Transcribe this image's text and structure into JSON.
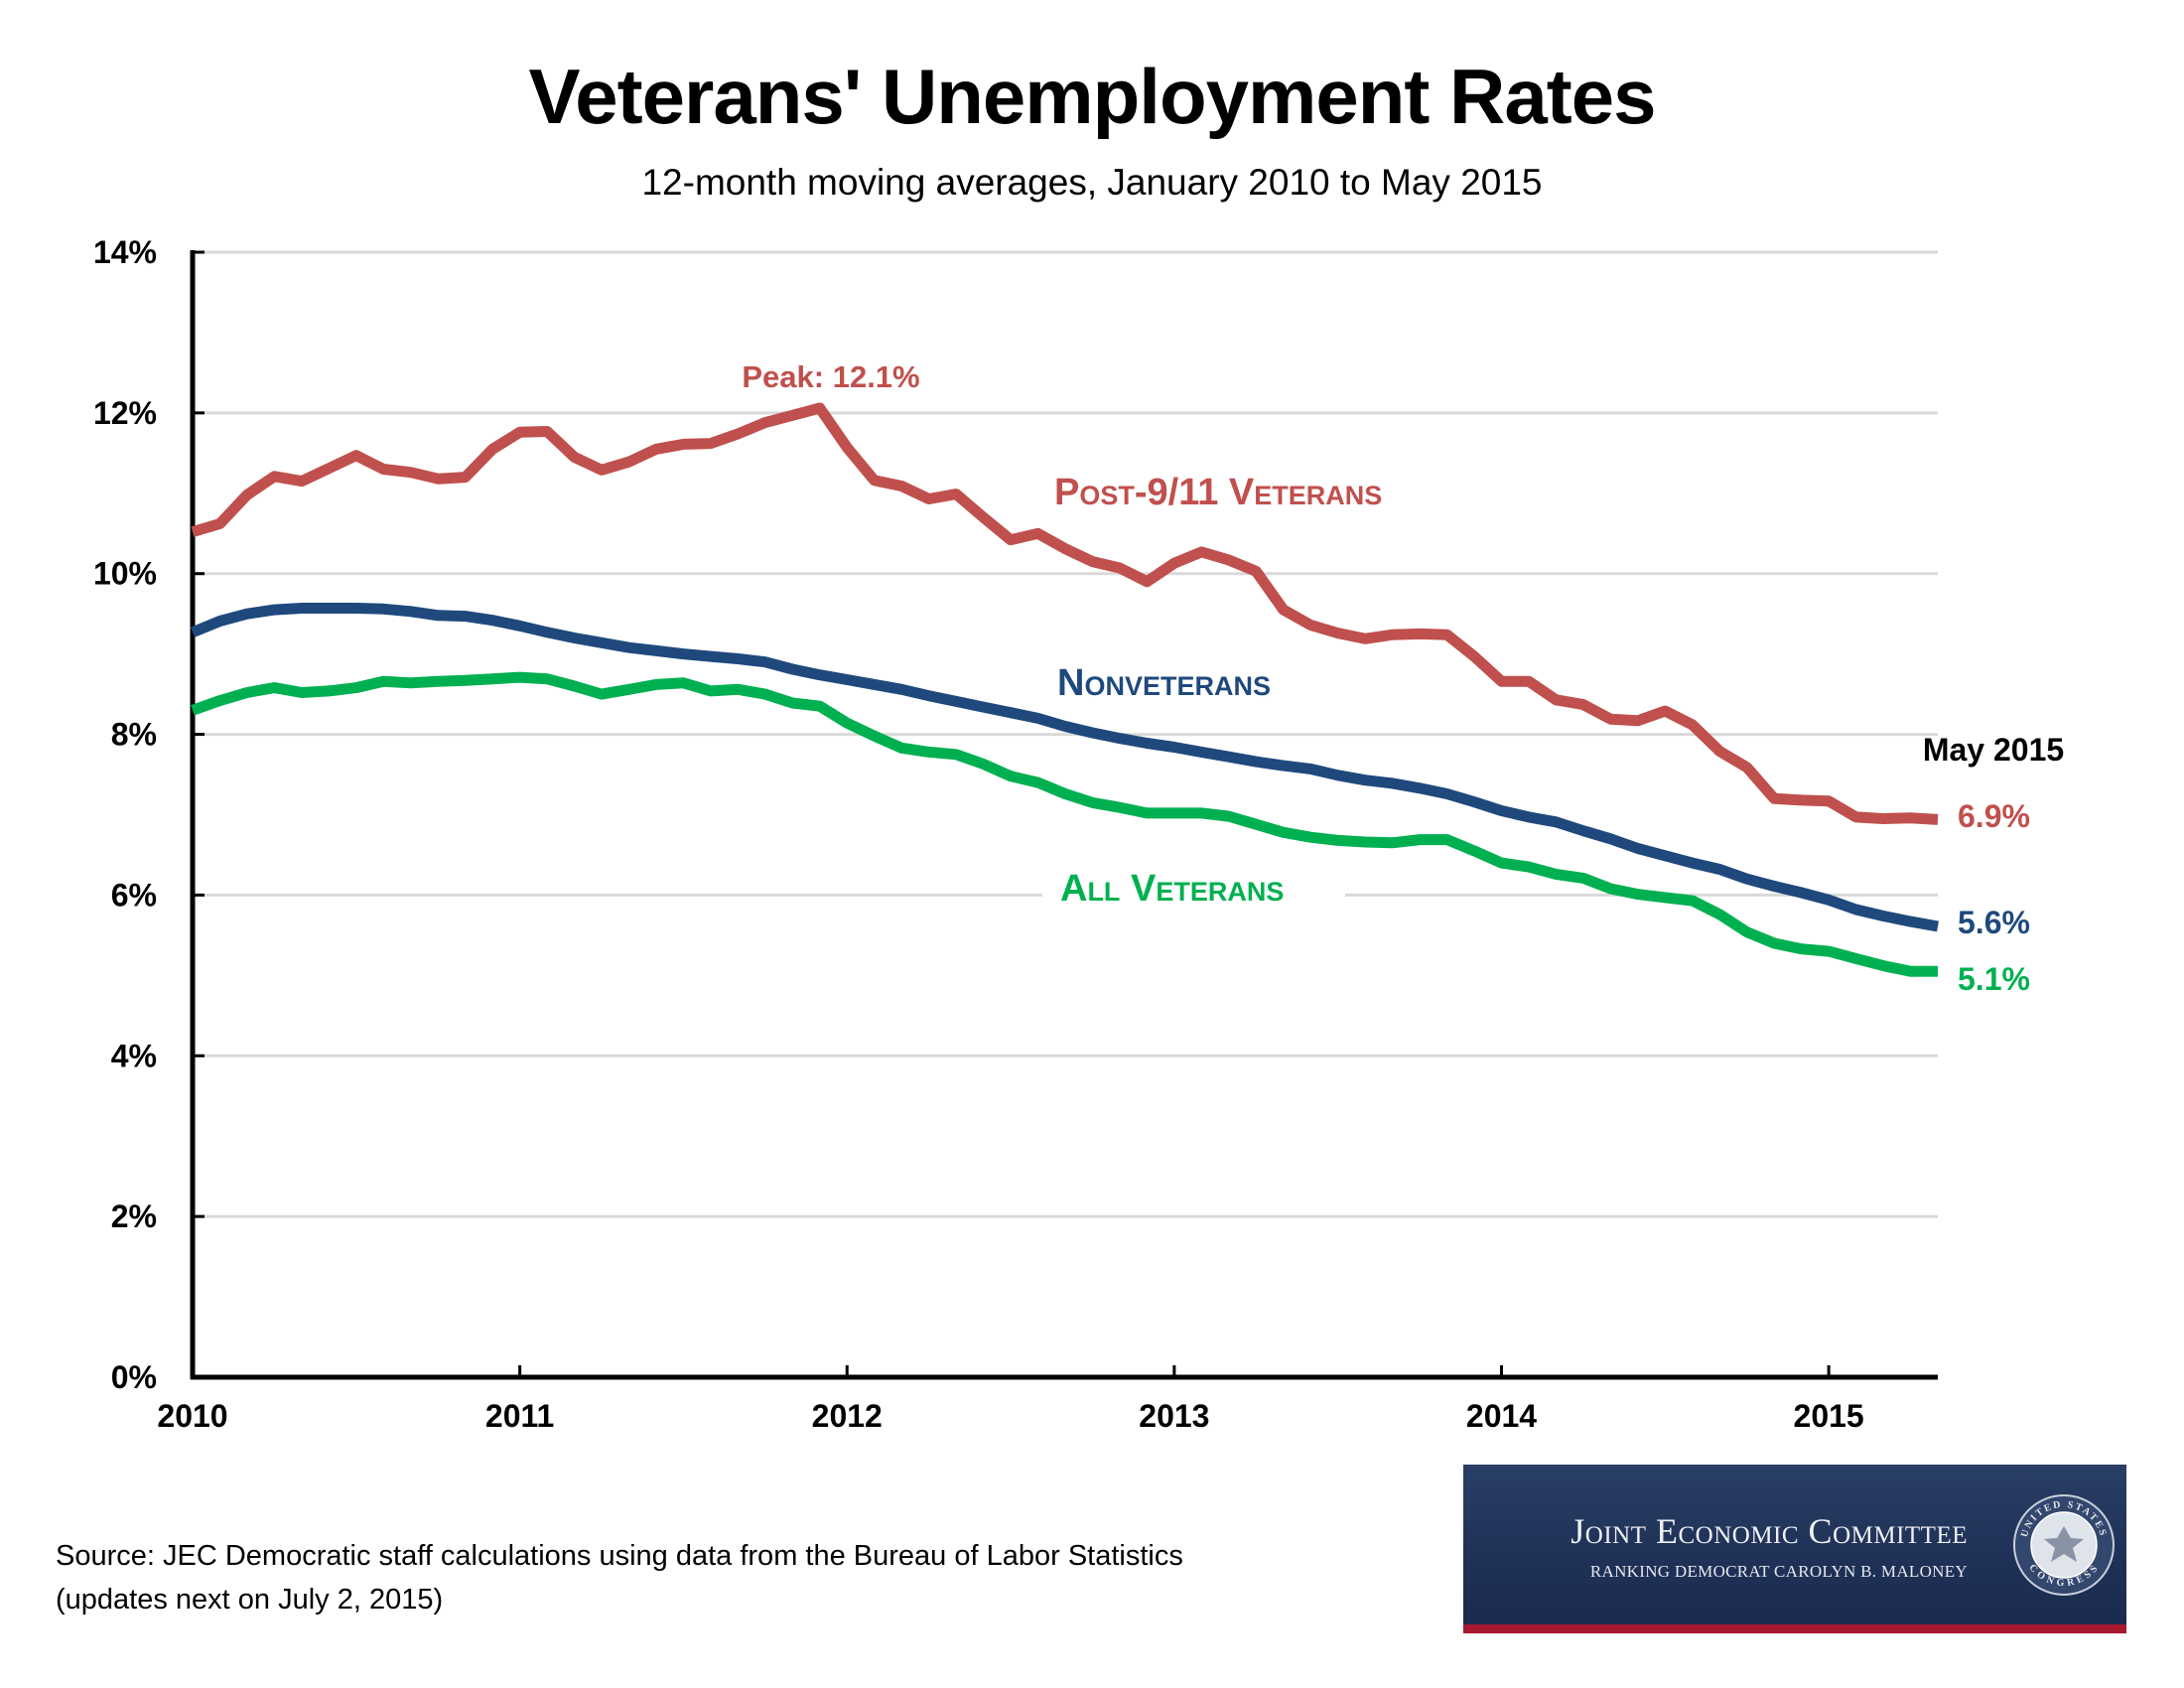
{
  "header": {
    "title": "Veterans' Unemployment Rates",
    "subtitle": "12-month moving averages, January 2010 to May 2015"
  },
  "footer": {
    "source_line1": "Source: JEC Democratic staff calculations using data from the Bureau of Labor Statistics",
    "source_line2": "(updates next on July 2, 2015)"
  },
  "logo": {
    "name": "Joint Economic Committee",
    "subtitle": "RANKING DEMOCRAT CAROLYN B. MALONEY",
    "seal_top_text": "UNITED STATES",
    "seal_bottom_text": "CONGRESS",
    "seal_icon": "congress-seal-icon",
    "background_color": "#1f3157",
    "stripe_color": "#a6192e"
  },
  "chart_data": {
    "type": "line",
    "title": "Veterans' Unemployment Rates",
    "subtitle": "12-month moving averages, January 2010 to May 2015",
    "xlabel": "",
    "ylabel": "",
    "x_start": "January 2010",
    "x_end": "May 2015",
    "x_unit": "month",
    "x_tick_labels": [
      "2010",
      "2011",
      "2012",
      "2013",
      "2014",
      "2015"
    ],
    "y_tick_labels": [
      "0%",
      "2%",
      "4%",
      "6%",
      "8%",
      "10%",
      "12%",
      "14%"
    ],
    "y_ticks": [
      0,
      2,
      4,
      6,
      8,
      10,
      12,
      14
    ],
    "ylim": [
      0,
      14
    ],
    "xlim_months": [
      0,
      64
    ],
    "grid": "horizontal",
    "legend": "inline labels",
    "series": [
      {
        "name": "Post-9/11 Veterans",
        "color": "#c0504d",
        "end_label": "6.9%",
        "values": [
          10.52,
          10.62,
          10.98,
          11.21,
          11.15,
          11.31,
          11.47,
          11.3,
          11.26,
          11.18,
          11.2,
          11.55,
          11.76,
          11.77,
          11.45,
          11.29,
          11.39,
          11.55,
          11.61,
          11.62,
          11.74,
          11.88,
          11.97,
          12.06,
          11.57,
          11.16,
          11.09,
          10.93,
          10.99,
          10.7,
          10.42,
          10.5,
          10.31,
          10.15,
          10.07,
          9.9,
          10.13,
          10.27,
          10.17,
          10.03,
          9.55,
          9.36,
          9.26,
          9.19,
          9.24,
          9.25,
          9.24,
          8.97,
          8.66,
          8.66,
          8.43,
          8.37,
          8.19,
          8.17,
          8.29,
          8.12,
          7.79,
          7.59,
          7.2,
          7.18,
          7.17,
          6.97,
          6.95,
          6.96,
          6.94
        ]
      },
      {
        "name": "Nonveterans",
        "color": "#1f497d",
        "end_label": "5.6%",
        "values": [
          9.27,
          9.41,
          9.5,
          9.55,
          9.57,
          9.57,
          9.57,
          9.56,
          9.53,
          9.48,
          9.47,
          9.42,
          9.35,
          9.27,
          9.2,
          9.14,
          9.08,
          9.04,
          9.0,
          8.97,
          8.94,
          8.9,
          8.81,
          8.74,
          8.68,
          8.62,
          8.56,
          8.48,
          8.41,
          8.34,
          8.27,
          8.2,
          8.1,
          8.02,
          7.95,
          7.89,
          7.84,
          7.78,
          7.72,
          7.66,
          7.61,
          7.57,
          7.49,
          7.43,
          7.39,
          7.33,
          7.26,
          7.16,
          7.05,
          6.97,
          6.91,
          6.8,
          6.7,
          6.58,
          6.49,
          6.4,
          6.32,
          6.2,
          6.11,
          6.03,
          5.94,
          5.82,
          5.74,
          5.67,
          5.61
        ]
      },
      {
        "name": "All Veterans",
        "color": "#00b050",
        "end_label": "5.1%",
        "values": [
          8.3,
          8.42,
          8.52,
          8.58,
          8.52,
          8.54,
          8.58,
          8.66,
          8.64,
          8.66,
          8.67,
          8.69,
          8.71,
          8.69,
          8.6,
          8.5,
          8.56,
          8.62,
          8.64,
          8.54,
          8.56,
          8.5,
          8.39,
          8.35,
          8.14,
          7.98,
          7.83,
          7.78,
          7.75,
          7.63,
          7.48,
          7.4,
          7.26,
          7.15,
          7.09,
          7.02,
          7.02,
          7.02,
          6.98,
          6.88,
          6.78,
          6.72,
          6.68,
          6.66,
          6.65,
          6.69,
          6.69,
          6.55,
          6.4,
          6.35,
          6.26,
          6.21,
          6.08,
          6.01,
          5.97,
          5.93,
          5.76,
          5.54,
          5.4,
          5.33,
          5.3,
          5.21,
          5.12,
          5.05,
          5.05
        ]
      }
    ],
    "annotations": [
      {
        "text": "Peak: 12.1%",
        "series": "Post-9/11 Veterans",
        "color": "#c0504d"
      },
      {
        "text": "May 2015",
        "color": "#000000"
      }
    ],
    "series_labels": [
      {
        "text": "Post-9/11 Veterans",
        "series": 0
      },
      {
        "text": "Nonveterans",
        "series": 1
      },
      {
        "text": "All Veterans",
        "series": 2
      }
    ]
  }
}
